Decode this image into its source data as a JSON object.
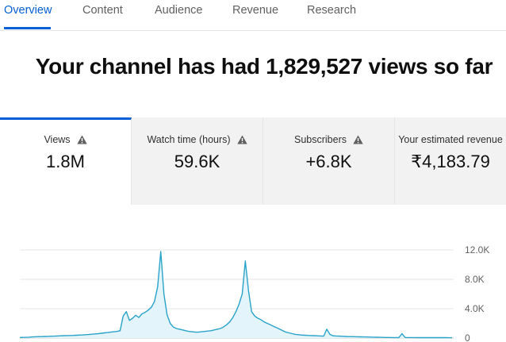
{
  "tabs": [
    {
      "label": "Overview",
      "active": true
    },
    {
      "label": "Content",
      "active": false
    },
    {
      "label": "Audience",
      "active": false
    },
    {
      "label": "Revenue",
      "active": false
    },
    {
      "label": "Research",
      "active": false
    }
  ],
  "headline": "Your channel has had 1,829,527 views so far",
  "cards": [
    {
      "label": "Views",
      "value": "1.8M",
      "icon": "warning-icon",
      "active": true
    },
    {
      "label": "Watch time (hours)",
      "value": "59.6K",
      "icon": "warning-icon",
      "active": false
    },
    {
      "label": "Subscribers",
      "value": "+6.8K",
      "icon": "warning-icon",
      "active": false
    },
    {
      "label": "Your estimated revenue",
      "value": "₹4,183.79",
      "active": false
    }
  ],
  "colors": {
    "accent": "#065fd4",
    "line": "#2aa3c9",
    "fill": "#e3f4fa"
  },
  "chart_data": {
    "type": "area",
    "ylim": [
      0,
      12000
    ],
    "y_ticks": [
      "12.0K",
      "8.0K",
      "4.0K",
      "0"
    ],
    "grid": true,
    "values": [
      80,
      90,
      100,
      120,
      150,
      170,
      190,
      200,
      220,
      230,
      250,
      260,
      280,
      300,
      320,
      330,
      350,
      360,
      380,
      400,
      420,
      450,
      480,
      520,
      560,
      600,
      650,
      700,
      750,
      800,
      850,
      900,
      1000,
      3000,
      3600,
      2400,
      2700,
      3100,
      2800,
      3300,
      3500,
      3800,
      4200,
      5000,
      7000,
      11800,
      6000,
      3200,
      2000,
      1500,
      1300,
      1200,
      1100,
      1000,
      900,
      850,
      800,
      800,
      850,
      900,
      950,
      1000,
      1100,
      1200,
      1300,
      1500,
      1800,
      2200,
      2800,
      3600,
      4600,
      6000,
      10500,
      6500,
      3600,
      3000,
      2700,
      2500,
      2200,
      2000,
      1800,
      1600,
      1400,
      1200,
      1000,
      800,
      700,
      600,
      500,
      450,
      400,
      380,
      360,
      340,
      320,
      300,
      280,
      260,
      1200,
      500,
      300,
      280,
      260,
      240,
      220,
      200,
      190,
      180,
      170,
      160,
      150,
      140,
      130,
      120,
      110,
      100,
      90,
      80,
      75,
      70,
      65,
      60,
      600,
      80,
      70,
      65,
      60,
      55,
      50,
      50,
      55,
      60,
      55,
      50,
      60,
      55,
      50,
      45,
      40
    ]
  }
}
